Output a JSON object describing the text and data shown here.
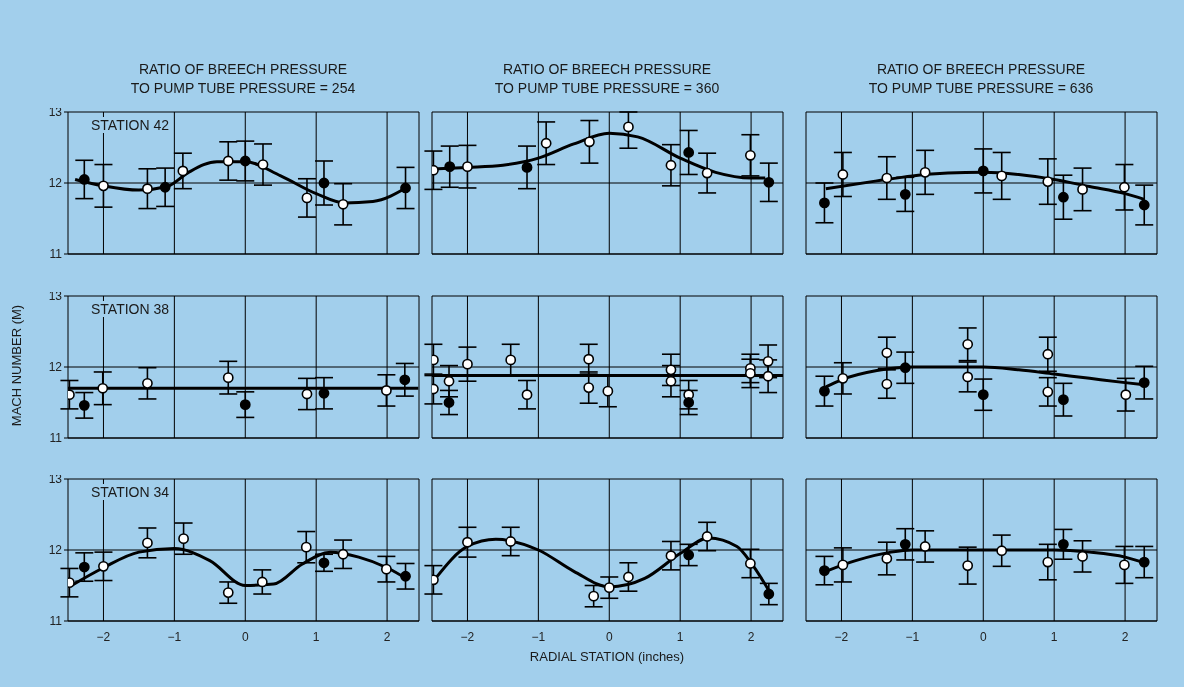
{
  "chart_data": [
    {
      "type": "scatter",
      "title": "RATIO OF BREECH PRESSURE\nTO PUMP TUBE PRESSURE = 254",
      "annotations": [
        "STATION 42"
      ],
      "xlim": [
        -2.5,
        2.45
      ],
      "ylim": [
        11,
        13
      ],
      "xticks": [
        -2,
        -1,
        0,
        1,
        2
      ],
      "yticks": [
        11,
        12,
        13
      ],
      "grid": true,
      "marker": "circle",
      "tick_labels": "y",
      "series": [
        {
          "color": "#ffffff",
          "x": [
            -2.0,
            -1.38,
            -0.88,
            -0.24,
            0.25,
            0.87,
            1.38
          ],
          "values": [
            11.96,
            11.92,
            12.17,
            12.31,
            12.26,
            11.79,
            11.7
          ],
          "errors": [
            0.3,
            0.28,
            0.25,
            0.27,
            0.29,
            0.27,
            0.29
          ]
        },
        {
          "color": "#000000",
          "x": [
            -2.27,
            -1.13,
            0,
            1.11,
            2.26
          ],
          "values": [
            12.05,
            11.94,
            12.31,
            12.0,
            11.93
          ],
          "errors": [
            0.27,
            0.27,
            0.28,
            0.31,
            0.29
          ]
        },
        {
          "type": "line",
          "marker": "none",
          "color": "#000000",
          "x": [
            -2.4,
            -2,
            -1.5,
            -1.1,
            -0.8,
            -0.4,
            0,
            0.5,
            1,
            1.4,
            1.8,
            2.3
          ],
          "values": [
            12.05,
            11.96,
            11.9,
            11.95,
            12.15,
            12.3,
            12.3,
            12.1,
            11.85,
            11.72,
            11.74,
            11.95
          ]
        }
      ]
    },
    {
      "type": "scatter",
      "title": "RATIO OF BREECH PRESSURE\nTO PUMP TUBE PRESSURE = 360",
      "xlim": [
        -2.5,
        2.45
      ],
      "ylim": [
        11,
        13
      ],
      "xticks": [
        -2,
        -1,
        0,
        1,
        2
      ],
      "yticks": [
        11,
        12,
        13
      ],
      "grid": true,
      "marker": "circle",
      "tick_labels": false,
      "series": [
        {
          "color": "#ffffff",
          "x": [
            -2.48,
            -2.0,
            -0.89,
            -0.28,
            0.27,
            0.87,
            1.38,
            1.99
          ],
          "values": [
            12.18,
            12.23,
            12.56,
            12.58,
            12.79,
            12.25,
            12.14,
            12.39
          ],
          "errors": [
            0.27,
            0.3,
            0.3,
            0.3,
            [
              12.49,
              13.0
            ],
            0.29,
            0.28,
            0.29
          ]
        },
        {
          "color": "#000000",
          "x": [
            -2.25,
            -1.16,
            1.12,
            2.25
          ],
          "values": [
            12.23,
            12.22,
            12.43,
            12.01
          ],
          "errors": [
            0.29,
            0.3,
            0.31,
            0.27
          ]
        },
        {
          "type": "line",
          "marker": "none",
          "color": "#000000",
          "x": [
            -2.48,
            -2,
            -1.5,
            -1,
            -0.5,
            0,
            0.4,
            1,
            1.5,
            2,
            2.2
          ],
          "values": [
            12.2,
            12.22,
            12.25,
            12.35,
            12.55,
            12.7,
            12.65,
            12.35,
            12.15,
            12.07,
            12.07
          ]
        }
      ]
    },
    {
      "type": "scatter",
      "title": "RATIO OF BREECH PRESSURE\nTO PUMP TUBE PRESSURE = 636",
      "xlim": [
        -2.5,
        2.45
      ],
      "ylim": [
        11,
        13
      ],
      "xticks": [
        -2,
        -1,
        0,
        1,
        2
      ],
      "yticks": [
        11,
        12,
        13
      ],
      "grid": true,
      "marker": "circle",
      "tick_labels": false,
      "series": [
        {
          "color": "#ffffff",
          "x": [
            -1.98,
            -1.36,
            -0.82,
            0.26,
            0.91,
            1.4,
            1.99
          ],
          "values": [
            12.12,
            12.07,
            12.15,
            12.1,
            12.02,
            11.91,
            11.94
          ],
          "errors": [
            0.31,
            0.3,
            0.31,
            0.33,
            0.32,
            0.3,
            0.32
          ]
        },
        {
          "color": "#000000",
          "x": [
            -2.24,
            -1.1,
            0,
            1.13,
            2.27
          ],
          "values": [
            11.72,
            11.84,
            12.17,
            11.8,
            11.69
          ],
          "errors": [
            0.28,
            0.24,
            0.31,
            0.31,
            0.28
          ]
        },
        {
          "type": "line",
          "marker": "none",
          "color": "#000000",
          "x": [
            -2.22,
            -1.5,
            -1,
            -0.5,
            0,
            0.5,
            1,
            1.5,
            2,
            2.27
          ],
          "values": [
            11.92,
            12.03,
            12.1,
            12.14,
            12.15,
            12.12,
            12.05,
            11.95,
            11.85,
            11.77
          ]
        }
      ]
    },
    {
      "type": "scatter",
      "ylabel": "MACH NUMBER (M)",
      "annotations": [
        "STATION 38"
      ],
      "xlim": [
        -2.5,
        2.45
      ],
      "ylim": [
        11,
        13
      ],
      "xticks": [
        -2,
        -1,
        0,
        1,
        2
      ],
      "yticks": [
        11,
        12,
        13
      ],
      "grid": true,
      "marker": "circle",
      "tick_labels": "y",
      "series": [
        {
          "color": "#ffffff",
          "x": [
            -2.48,
            -2.01,
            -1.38,
            -0.24,
            0.87,
            1.99
          ],
          "values": [
            11.61,
            11.7,
            11.77,
            11.85,
            11.62,
            11.67
          ],
          "errors": [
            0.2,
            0.23,
            0.22,
            0.23,
            0.22,
            0.22
          ]
        },
        {
          "color": "#000000",
          "x": [
            -2.27,
            0,
            1.11,
            2.25
          ],
          "values": [
            11.46,
            11.47,
            11.63,
            11.82
          ],
          "errors": [
            0.18,
            0.18,
            0.22,
            0.23
          ]
        },
        {
          "type": "line",
          "marker": "none",
          "color": "#000000",
          "x": [
            -2.5,
            2.44
          ],
          "values": [
            11.7,
            11.7
          ]
        }
      ]
    },
    {
      "type": "scatter",
      "xlim": [
        -2.5,
        2.45
      ],
      "ylim": [
        11,
        13
      ],
      "xticks": [
        -2,
        -1,
        0,
        1,
        2
      ],
      "yticks": [
        11,
        12,
        13
      ],
      "grid": true,
      "marker": "circle",
      "tick_labels": false,
      "series": [
        {
          "color": "#ffffff",
          "x": [
            -2.48,
            -2.48,
            -2.26,
            -2.0,
            -1.39,
            -1.16,
            -0.29,
            -0.29,
            -0.02,
            0.87,
            0.87,
            1.12,
            1.99,
            1.99,
            2.24,
            2.24
          ],
          "values": [
            12.1,
            11.69,
            11.8,
            12.04,
            12.1,
            11.61,
            12.11,
            11.71,
            11.66,
            11.96,
            11.8,
            11.61,
            11.98,
            11.91,
            12.08,
            11.87
          ],
          "errors": [
            0.22,
            0.21,
            0.22,
            0.24,
            0.22,
            0.2,
            0.21,
            0.22,
            0.22,
            0.22,
            0.22,
            0.2,
            0.2,
            0.2,
            0.23,
            0.23
          ]
        },
        {
          "color": "#000000",
          "x": [
            -2.26,
            1.12
          ],
          "values": [
            11.5,
            11.5
          ],
          "errors": [
            0.17,
            0.17
          ]
        },
        {
          "type": "line",
          "marker": "none",
          "color": "#000000",
          "x": [
            -2.5,
            2.45
          ],
          "values": [
            11.88,
            11.88
          ]
        }
      ]
    },
    {
      "type": "scatter",
      "xlim": [
        -2.5,
        2.45
      ],
      "ylim": [
        11,
        13
      ],
      "xticks": [
        -2,
        -1,
        0,
        1,
        2
      ],
      "yticks": [
        11,
        12,
        13
      ],
      "grid": true,
      "marker": "circle",
      "tick_labels": false,
      "series": [
        {
          "color": "#ffffff",
          "x": [
            -1.98,
            -1.36,
            -1.36,
            -0.22,
            -0.22,
            0.91,
            0.91,
            2.01
          ],
          "values": [
            11.84,
            12.2,
            11.76,
            12.32,
            11.86,
            12.18,
            11.65,
            11.61
          ],
          "errors": [
            0.22,
            0.22,
            0.2,
            0.23,
            0.21,
            0.24,
            0.2,
            0.23
          ]
        },
        {
          "color": "#000000",
          "x": [
            -2.24,
            -1.1,
            0,
            1.13,
            2.27
          ],
          "values": [
            11.66,
            11.99,
            11.61,
            11.54,
            11.78
          ],
          "errors": [
            0.21,
            0.22,
            0.22,
            0.23,
            0.23
          ]
        },
        {
          "type": "line",
          "marker": "none",
          "color": "#000000",
          "x": [
            -2.22,
            -2,
            -1.5,
            -1,
            0,
            0.5,
            1,
            1.5,
            2,
            2.27
          ],
          "values": [
            11.72,
            11.82,
            11.95,
            12.0,
            12.0,
            11.96,
            11.9,
            11.84,
            11.78,
            11.75
          ]
        }
      ]
    },
    {
      "type": "scatter",
      "annotations": [
        "STATION 34"
      ],
      "xlim": [
        -2.5,
        2.45
      ],
      "ylim": [
        11,
        13
      ],
      "xticks": [
        -2,
        -1,
        0,
        1,
        2
      ],
      "yticks": [
        11,
        12,
        13
      ],
      "grid": true,
      "marker": "circle",
      "series": [
        {
          "color": "#ffffff",
          "x": [
            -2.48,
            -2.0,
            -1.38,
            -0.87,
            -0.24,
            0.24,
            0.86,
            1.38,
            1.99
          ],
          "values": [
            11.54,
            11.77,
            12.1,
            12.16,
            11.4,
            11.55,
            12.04,
            11.94,
            11.73
          ],
          "errors": [
            0.2,
            0.2,
            0.21,
            0.22,
            0.15,
            0.17,
            0.22,
            0.2,
            0.18
          ]
        },
        {
          "color": "#000000",
          "x": [
            -2.27,
            1.11,
            2.26
          ],
          "values": [
            11.76,
            11.82,
            11.63
          ],
          "errors": [
            0.2,
            0.12,
            0.18
          ]
        },
        {
          "type": "line",
          "marker": "none",
          "color": "#000000",
          "x": [
            -2.45,
            -2,
            -1.5,
            -1,
            -0.5,
            0,
            0.4,
            0.8,
            1.2,
            1.6,
            2,
            2.3
          ],
          "values": [
            11.5,
            11.75,
            11.97,
            12.02,
            11.85,
            11.5,
            11.52,
            11.8,
            11.97,
            11.9,
            11.75,
            11.58
          ]
        }
      ]
    },
    {
      "type": "scatter",
      "xlabel": "RADIAL STATION (inches)",
      "xlim": [
        -2.5,
        2.45
      ],
      "ylim": [
        11,
        13
      ],
      "xticks": [
        -2,
        -1,
        0,
        1,
        2
      ],
      "yticks": [
        11,
        12,
        13
      ],
      "grid": true,
      "marker": "circle",
      "tick_labels": "x",
      "series": [
        {
          "color": "#ffffff",
          "x": [
            -2.48,
            -2.0,
            -1.39,
            -0.22,
            0,
            0.27,
            0.87,
            1.38,
            1.99
          ],
          "values": [
            11.58,
            12.11,
            12.12,
            11.35,
            11.47,
            11.62,
            11.92,
            12.19,
            11.81
          ],
          "errors": [
            0.2,
            0.21,
            0.2,
            0.15,
            0.15,
            0.2,
            0.2,
            0.2,
            0.2
          ]
        },
        {
          "color": "#000000",
          "x": [
            1.12,
            2.25
          ],
          "values": [
            11.93,
            11.38
          ],
          "errors": [
            0.15,
            0.15
          ]
        },
        {
          "type": "line",
          "marker": "none",
          "color": "#000000",
          "x": [
            -2.45,
            -2,
            -1.6,
            -1,
            -0.5,
            0,
            0.5,
            1,
            1.4,
            1.8,
            2,
            2.25
          ],
          "values": [
            11.6,
            12.05,
            12.15,
            12.0,
            11.7,
            11.48,
            11.6,
            11.95,
            12.17,
            12.05,
            11.82,
            11.43
          ]
        }
      ]
    },
    {
      "type": "scatter",
      "xlim": [
        -2.5,
        2.45
      ],
      "ylim": [
        11,
        13
      ],
      "xticks": [
        -2,
        -1,
        0,
        1,
        2
      ],
      "yticks": [
        11,
        12,
        13
      ],
      "grid": true,
      "marker": "circle",
      "tick_labels": "x",
      "series": [
        {
          "color": "#ffffff",
          "x": [
            -1.98,
            -1.36,
            -0.82,
            -0.22,
            0.26,
            0.91,
            1.4,
            1.99
          ],
          "values": [
            11.79,
            11.88,
            12.05,
            11.78,
            11.99,
            11.83,
            11.91,
            11.79
          ],
          "errors": [
            0.24,
            0.23,
            0.22,
            0.26,
            0.22,
            0.25,
            0.22,
            0.26
          ]
        },
        {
          "color": "#000000",
          "x": [
            -2.24,
            -1.1,
            1.13,
            2.27
          ],
          "values": [
            11.71,
            12.08,
            12.08,
            11.83
          ],
          "errors": [
            0.2,
            0.22,
            0.21,
            0.22
          ]
        },
        {
          "type": "line",
          "marker": "none",
          "color": "#000000",
          "x": [
            -2.22,
            -1.8,
            -1.3,
            -1,
            0,
            1,
            1.5,
            2,
            2.27
          ],
          "values": [
            11.7,
            11.85,
            11.97,
            12.0,
            12.0,
            12.0,
            11.97,
            11.9,
            11.82
          ]
        }
      ]
    }
  ]
}
